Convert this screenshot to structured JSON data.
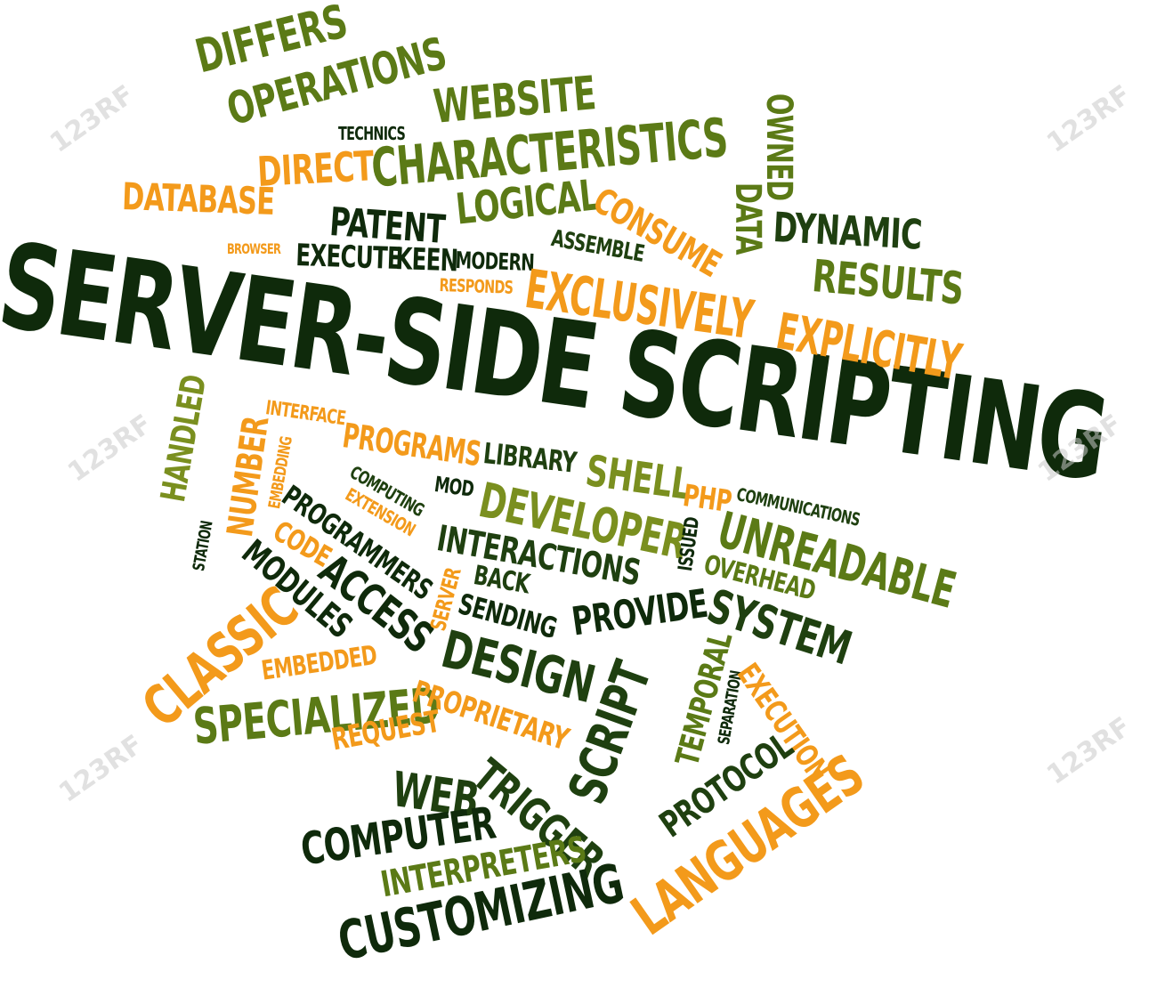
{
  "words": {
    "w0": "SERVER-SIDE SCRIPTING",
    "w1": "DIFFERS",
    "w2": "OPERATIONS",
    "w3": "WEBSITE",
    "w4": "TECHNICS",
    "w5": "CHARACTERISTICS",
    "w6": "OWNED",
    "w7": "DIRECT",
    "w8": "DATABASE",
    "w9": "LOGICAL",
    "w10": "CONSUME",
    "w11": "DATA",
    "w12": "DYNAMIC",
    "w13": "PATENT",
    "w14": "BROWSER",
    "w15": "EXECUTE",
    "w16": "KEEN",
    "w17": "ASSEMBLE",
    "w18": "MODERN",
    "w19": "RESPONDS",
    "w20": "RESULTS",
    "w21": "EXCLUSIVELY",
    "w22": "EXPLICITLY",
    "w23": "HANDLED",
    "w24": "NUMBER",
    "w25": "INTERFACE",
    "w26": "EMBEDDING",
    "w27": "PROGRAMS",
    "w28": "LIBRARY",
    "w29": "SHELL",
    "w30": "PHP",
    "w31": "COMMUNICATIONS",
    "w32": "COMPUTING",
    "w33": "MOD",
    "w34": "DEVELOPER",
    "w35": "UNREADABLE",
    "w36": "STATION",
    "w37": "EXTENSION",
    "w38": "PROGRAMMERS",
    "w39": "INTERACTIONS",
    "w40": "ISSUED",
    "w41": "OVERHEAD",
    "w42": "CODE",
    "w43": "MODULES",
    "w44": "ACCESS",
    "w45": "SERVER",
    "w46": "BACK",
    "w47": "SENDING",
    "w48": "PROVIDE",
    "w49": "SYSTEM",
    "w50": "CLASSIC",
    "w51": "EMBEDDED",
    "w52": "DESIGN",
    "w53": "TEMPORAL",
    "w54": "SEPARATION",
    "w55": "EXECUTION",
    "w56": "SPECIALIZED",
    "w57": "PROPRIETARY",
    "w58": "SCRIPT",
    "w59": "REQUEST",
    "w60": "PROTOCOL",
    "w61": "WEB",
    "w62": "TRIGGER",
    "w63": "LANGUAGES",
    "w64": "COMPUTER",
    "w65": "INTERPRETERS",
    "w66": "CUSTOMIZING"
  },
  "watermark": "123RF"
}
